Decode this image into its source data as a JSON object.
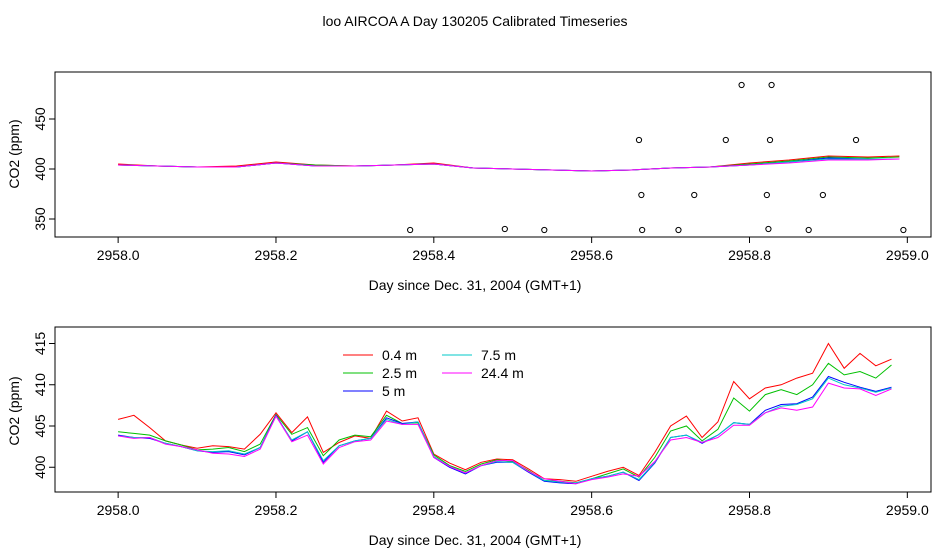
{
  "page": {
    "title": "loo AIRCOA A  Day 130205  Calibrated Timeseries"
  },
  "chart_data": [
    {
      "type": "scatter",
      "xlabel": "Day since Dec. 31, 2004 (GMT+1)",
      "ylabel": "CO2 (ppm)",
      "xlim": [
        2957.92,
        2959.03
      ],
      "ylim": [
        332,
        497
      ],
      "xticks": [
        "2958.0",
        "2958.2",
        "2958.4",
        "2958.6",
        "2958.8",
        "2959.0"
      ],
      "xtick_values": [
        2958.0,
        2958.2,
        2958.4,
        2958.6,
        2958.8,
        2959.0
      ],
      "yticks": [
        "350",
        "400",
        "450"
      ],
      "ytick_values": [
        350,
        400,
        450
      ],
      "grid": false,
      "series": [
        {
          "color": "#ff0000",
          "x": [
            2958.0,
            2958.05,
            2958.1,
            2958.15,
            2958.2,
            2958.25,
            2958.3,
            2958.35,
            2958.4,
            2958.45,
            2958.5,
            2958.55,
            2958.6,
            2958.65,
            2958.7,
            2958.75,
            2958.8,
            2958.85,
            2958.9,
            2958.95,
            2958.99
          ],
          "values": [
            405,
            403,
            402,
            403,
            407,
            404,
            403,
            404,
            406,
            401,
            400,
            399,
            398,
            399,
            401,
            402,
            406,
            409,
            413,
            412,
            413
          ]
        },
        {
          "color": "#00c000",
          "x": [
            2958.0,
            2958.05,
            2958.1,
            2958.15,
            2958.2,
            2958.25,
            2958.3,
            2958.35,
            2958.4,
            2958.45,
            2958.5,
            2958.55,
            2958.6,
            2958.65,
            2958.7,
            2958.75,
            2958.8,
            2958.85,
            2958.9,
            2958.95,
            2958.99
          ],
          "values": [
            404,
            403,
            402,
            402,
            406,
            404,
            403,
            404,
            405,
            401,
            400,
            399,
            398,
            399,
            401,
            402,
            405,
            408,
            412,
            411,
            412
          ]
        },
        {
          "color": "#0000ff",
          "x": [
            2958.0,
            2958.05,
            2958.1,
            2958.15,
            2958.2,
            2958.25,
            2958.3,
            2958.35,
            2958.4,
            2958.45,
            2958.5,
            2958.55,
            2958.6,
            2958.65,
            2958.7,
            2958.75,
            2958.8,
            2958.85,
            2958.9,
            2958.95,
            2958.99
          ],
          "values": [
            404,
            403,
            402,
            402,
            406,
            403,
            403,
            404,
            405,
            401,
            400,
            399,
            398,
            399,
            401,
            402,
            404,
            407,
            411,
            410,
            410
          ]
        },
        {
          "color": "#00c8c8",
          "x": [
            2958.0,
            2958.05,
            2958.1,
            2958.15,
            2958.2,
            2958.25,
            2958.3,
            2958.35,
            2958.4,
            2958.45,
            2958.5,
            2958.55,
            2958.6,
            2958.65,
            2958.7,
            2958.75,
            2958.8,
            2958.85,
            2958.9,
            2958.95,
            2958.99
          ],
          "values": [
            404,
            403,
            402,
            402,
            406,
            403,
            403,
            404,
            405,
            401,
            400,
            399,
            398,
            399,
            401,
            402,
            404,
            407,
            410,
            410,
            410
          ]
        },
        {
          "color": "#ff00ff",
          "x": [
            2958.0,
            2958.05,
            2958.1,
            2958.15,
            2958.2,
            2958.25,
            2958.3,
            2958.35,
            2958.4,
            2958.45,
            2958.5,
            2958.55,
            2958.6,
            2958.65,
            2958.7,
            2958.75,
            2958.8,
            2958.85,
            2958.9,
            2958.95,
            2958.99
          ],
          "values": [
            404,
            403,
            402,
            402,
            406,
            403,
            403,
            404,
            405,
            401,
            400,
            399,
            398,
            399,
            401,
            402,
            404,
            406,
            409,
            409,
            410
          ]
        }
      ],
      "outliers": {
        "x": [
          2958.37,
          2958.49,
          2958.54,
          2958.66,
          2958.663,
          2958.664,
          2958.71,
          2958.73,
          2958.77,
          2958.79,
          2958.822,
          2958.824,
          2958.826,
          2958.828,
          2958.875,
          2958.893,
          2958.935,
          2958.995
        ],
        "values": [
          339,
          340,
          339,
          429,
          374,
          339,
          339,
          374,
          429,
          484,
          374,
          340,
          429,
          484,
          339,
          374,
          429,
          339
        ]
      }
    },
    {
      "type": "line",
      "xlabel": "Day since Dec. 31, 2004 (GMT+1)",
      "ylabel": "CO2 (ppm)",
      "xlim": [
        2957.92,
        2959.03
      ],
      "ylim": [
        397.0,
        417.0
      ],
      "xticks": [
        "2958.0",
        "2958.2",
        "2958.4",
        "2958.6",
        "2958.8",
        "2959.0"
      ],
      "xtick_values": [
        2958.0,
        2958.2,
        2958.4,
        2958.6,
        2958.8,
        2959.0
      ],
      "yticks": [
        "400",
        "405",
        "410",
        "415"
      ],
      "ytick_values": [
        400,
        405,
        410,
        415
      ],
      "grid": false,
      "legend_position": "top-center",
      "x": [
        2958.0,
        2958.02,
        2958.04,
        2958.06,
        2958.08,
        2958.1,
        2958.12,
        2958.14,
        2958.16,
        2958.18,
        2958.2,
        2958.22,
        2958.24,
        2958.26,
        2958.28,
        2958.3,
        2958.32,
        2958.34,
        2958.36,
        2958.38,
        2958.4,
        2958.42,
        2958.44,
        2958.46,
        2958.48,
        2958.5,
        2958.52,
        2958.54,
        2958.56,
        2958.58,
        2958.6,
        2958.62,
        2958.64,
        2958.66,
        2958.68,
        2958.7,
        2958.72,
        2958.74,
        2958.76,
        2958.78,
        2958.8,
        2958.82,
        2958.84,
        2958.86,
        2958.88,
        2958.9,
        2958.92,
        2958.94,
        2958.96,
        2958.98
      ],
      "series": [
        {
          "name": "0.4 m",
          "color": "#ff0000",
          "values": [
            405.8,
            406.3,
            404.8,
            403.2,
            402.7,
            402.3,
            402.6,
            402.5,
            402.2,
            404.0,
            406.6,
            404.2,
            406.1,
            401.8,
            403.0,
            403.8,
            403.5,
            406.8,
            405.6,
            406.0,
            401.6,
            400.5,
            399.7,
            400.6,
            401.0,
            400.9,
            399.8,
            398.6,
            398.5,
            398.3,
            398.9,
            399.5,
            400.0,
            399.0,
            401.8,
            405.0,
            406.2,
            403.6,
            405.5,
            410.4,
            408.3,
            409.6,
            410.0,
            410.8,
            411.4,
            415.0,
            412.0,
            413.8,
            412.3,
            413.1
          ]
        },
        {
          "name": "2.5 m",
          "color": "#00c000",
          "values": [
            404.3,
            404.1,
            403.9,
            403.2,
            402.7,
            402.1,
            402.2,
            402.4,
            401.9,
            402.8,
            406.4,
            404.0,
            404.8,
            401.4,
            403.3,
            403.9,
            403.7,
            406.3,
            405.3,
            405.4,
            401.5,
            400.2,
            399.5,
            400.4,
            400.9,
            400.7,
            399.6,
            398.4,
            398.3,
            398.1,
            398.6,
            399.2,
            399.8,
            398.8,
            401.2,
            404.4,
            405.0,
            403.2,
            404.6,
            408.4,
            406.8,
            408.8,
            409.4,
            408.8,
            410.0,
            412.6,
            411.2,
            411.6,
            410.8,
            412.4
          ]
        },
        {
          "name": "5 m",
          "color": "#0000ff",
          "values": [
            403.9,
            403.6,
            403.5,
            402.9,
            402.5,
            402.0,
            401.8,
            401.9,
            401.5,
            402.4,
            406.3,
            403.2,
            404.3,
            400.6,
            402.6,
            403.2,
            403.5,
            406.0,
            405.3,
            405.5,
            401.2,
            400.0,
            399.2,
            400.2,
            400.6,
            400.6,
            399.4,
            398.3,
            398.1,
            398.0,
            398.6,
            398.9,
            399.4,
            398.4,
            400.5,
            403.6,
            403.9,
            402.9,
            403.9,
            405.4,
            405.2,
            406.9,
            407.6,
            407.7,
            408.5,
            411.0,
            410.3,
            409.7,
            409.2,
            409.7
          ]
        },
        {
          "name": "7.5 m",
          "color": "#00c8c8",
          "values": [
            403.8,
            403.6,
            403.6,
            402.9,
            402.5,
            402.0,
            401.9,
            402.0,
            401.6,
            402.4,
            406.2,
            403.3,
            404.3,
            400.8,
            402.6,
            403.2,
            403.5,
            405.8,
            405.2,
            405.5,
            401.3,
            400.1,
            399.3,
            400.2,
            400.7,
            400.6,
            399.5,
            398.4,
            398.2,
            398.1,
            398.6,
            398.9,
            399.4,
            398.5,
            400.6,
            403.6,
            403.9,
            403.0,
            403.9,
            405.4,
            405.2,
            406.6,
            407.4,
            407.6,
            408.3,
            410.8,
            410.0,
            409.6,
            409.1,
            409.6
          ]
        },
        {
          "name": "24.4 m",
          "color": "#ff00ff",
          "values": [
            403.8,
            403.5,
            403.6,
            402.8,
            402.5,
            402.1,
            401.7,
            401.6,
            401.3,
            402.2,
            406.2,
            403.1,
            403.9,
            400.4,
            402.4,
            403.1,
            403.3,
            405.6,
            405.2,
            405.2,
            401.2,
            400.1,
            399.3,
            400.2,
            400.8,
            400.8,
            399.5,
            398.6,
            398.3,
            398.0,
            398.5,
            398.8,
            399.2,
            398.9,
            400.7,
            403.3,
            403.6,
            403.0,
            403.6,
            405.1,
            405.1,
            406.6,
            407.2,
            406.9,
            407.3,
            410.2,
            409.6,
            409.5,
            408.7,
            409.5
          ]
        }
      ]
    }
  ]
}
